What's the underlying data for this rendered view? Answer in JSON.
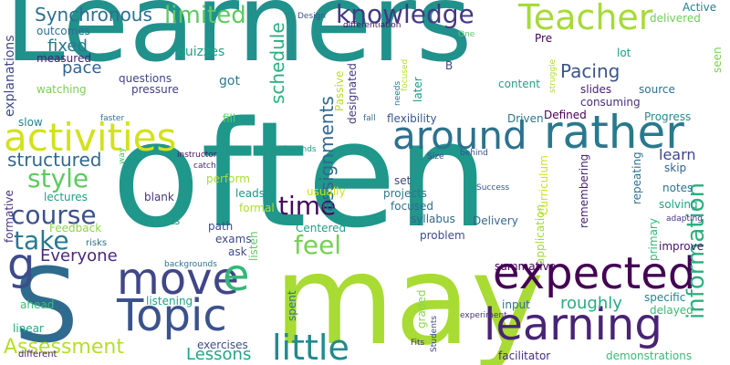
{
  "words": [
    {
      "text": "Learners",
      "color": "#21918c",
      "vertical": false
    },
    {
      "text": "often",
      "color": "#1f978b",
      "vertical": false
    },
    {
      "text": "may",
      "color": "#a8db34",
      "vertical": false
    },
    {
      "text": "S",
      "color": "#2f6b8e",
      "vertical": false
    },
    {
      "text": "Topic",
      "color": "#3b528b",
      "vertical": false
    },
    {
      "text": "learning",
      "color": "#482475",
      "vertical": false
    },
    {
      "text": "expected",
      "color": "#440154",
      "vertical": false
    },
    {
      "text": "move",
      "color": "#404688",
      "vertical": false
    },
    {
      "text": "g",
      "color": "#3e4c8a",
      "vertical": false
    },
    {
      "text": "e",
      "color": "#35b779",
      "vertical": false
    },
    {
      "text": "activities",
      "color": "#d2e21b",
      "vertical": false
    },
    {
      "text": "around",
      "color": "#2c728e",
      "vertical": false
    },
    {
      "text": "rather",
      "color": "#29798e",
      "vertical": false
    },
    {
      "text": "Teacher",
      "color": "#a5db36",
      "vertical": false
    },
    {
      "text": "knowledge",
      "color": "#443983",
      "vertical": false
    },
    {
      "text": "little",
      "color": "#23898e",
      "vertical": false
    },
    {
      "text": "information",
      "color": "#2ab07f",
      "vertical": true
    },
    {
      "text": "course",
      "color": "#3b528b",
      "vertical": false
    },
    {
      "text": "take",
      "color": "#2a788e",
      "vertical": false
    },
    {
      "text": "feel",
      "color": "#75d054",
      "vertical": false
    },
    {
      "text": "time",
      "color": "#46085c",
      "vertical": false
    },
    {
      "text": "style",
      "color": "#5ec962",
      "vertical": false
    },
    {
      "text": "structured",
      "color": "#31688e",
      "vertical": false
    },
    {
      "text": "limited",
      "color": "#5ec962",
      "vertical": false
    },
    {
      "text": "Synchronous",
      "color": "#2d708e",
      "vertical": false
    },
    {
      "text": "Assessment",
      "color": "#b5de2b",
      "vertical": false
    },
    {
      "text": "Everyone",
      "color": "#482878",
      "vertical": false
    },
    {
      "text": "assignments",
      "color": "#31688e",
      "vertical": true
    },
    {
      "text": "schedule",
      "color": "#2ab07f",
      "vertical": true
    },
    {
      "text": "Pacing",
      "color": "#39568c",
      "vertical": false
    },
    {
      "text": "roughly",
      "color": "#26ad81",
      "vertical": false
    },
    {
      "text": "fixed",
      "color": "#2a788e",
      "vertical": false
    },
    {
      "text": "pace",
      "color": "#33638d",
      "vertical": false
    },
    {
      "text": "Lessons",
      "color": "#21a685",
      "vertical": false
    },
    {
      "text": "quizzes",
      "color": "#1f9e89",
      "vertical": false
    },
    {
      "text": "outcomes",
      "color": "#2e6e8e",
      "vertical": false
    },
    {
      "text": "measured",
      "color": "#481f70",
      "vertical": false
    },
    {
      "text": "watching",
      "color": "#7ad151",
      "vertical": false
    },
    {
      "text": "explanations",
      "color": "#3e4989",
      "vertical": true
    },
    {
      "text": "questions",
      "color": "#414487",
      "vertical": false
    },
    {
      "text": "pressure",
      "color": "#433e85",
      "vertical": false
    },
    {
      "text": "got",
      "color": "#287d8e",
      "vertical": false
    },
    {
      "text": "designated",
      "color": "#453781",
      "vertical": true
    },
    {
      "text": "later",
      "color": "#1f9a8a",
      "vertical": true
    },
    {
      "text": "Passive",
      "color": "#b8de29",
      "vertical": true
    },
    {
      "text": "content",
      "color": "#20a386",
      "vertical": false
    },
    {
      "text": "slides",
      "color": "#482173",
      "vertical": false
    },
    {
      "text": "source",
      "color": "#2c728e",
      "vertical": false
    },
    {
      "text": "consuming",
      "color": "#472d7b",
      "vertical": false
    },
    {
      "text": "Pre",
      "color": "#440154",
      "vertical": false
    },
    {
      "text": "lot",
      "color": "#1f9e89",
      "vertical": false
    },
    {
      "text": "B",
      "color": "#404688",
      "vertical": false
    },
    {
      "text": "Active",
      "color": "#26818e",
      "vertical": false
    },
    {
      "text": "delivered",
      "color": "#6ece58",
      "vertical": false
    },
    {
      "text": "seen",
      "color": "#7ad151",
      "vertical": true
    },
    {
      "text": "flexibility",
      "color": "#38588c",
      "vertical": false
    },
    {
      "text": "Driven",
      "color": "#2b758e",
      "vertical": false
    },
    {
      "text": "Defined",
      "color": "#440154",
      "vertical": false
    },
    {
      "text": "Progress",
      "color": "#228c8d",
      "vertical": false
    },
    {
      "text": "learn",
      "color": "#404688",
      "vertical": false
    },
    {
      "text": "skip",
      "color": "#33638d",
      "vertical": false
    },
    {
      "text": "notes",
      "color": "#2c728e",
      "vertical": false
    },
    {
      "text": "solving",
      "color": "#20a486",
      "vertical": false
    },
    {
      "text": "improve",
      "color": "#471365",
      "vertical": false
    },
    {
      "text": "delayed",
      "color": "#3aba76",
      "vertical": false
    },
    {
      "text": "specific",
      "color": "#24868e",
      "vertical": false
    },
    {
      "text": "facilitator",
      "color": "#472c7a",
      "vertical": false
    },
    {
      "text": "demonstrations",
      "color": "#3aba76",
      "vertical": false
    },
    {
      "text": "input",
      "color": "#2c728e",
      "vertical": false
    },
    {
      "text": "summative",
      "color": "#440154",
      "vertical": false
    },
    {
      "text": "application",
      "color": "#9fda3a",
      "vertical": true
    },
    {
      "text": "Curriculum",
      "color": "#cde11d",
      "vertical": true
    },
    {
      "text": "primary",
      "color": "#35b779",
      "vertical": true
    },
    {
      "text": "remembering",
      "color": "#482071",
      "vertical": true
    },
    {
      "text": "repeating",
      "color": "#2d708e",
      "vertical": true
    },
    {
      "text": "Delivery",
      "color": "#31688e",
      "vertical": false
    },
    {
      "text": "syllabus",
      "color": "#2f6c8e",
      "vertical": false
    },
    {
      "text": "problem",
      "color": "#3e4c8a",
      "vertical": false
    },
    {
      "text": "projects",
      "color": "#2a788e",
      "vertical": false
    },
    {
      "text": "focused",
      "color": "#2e6e8e",
      "vertical": false
    },
    {
      "text": "set",
      "color": "#414487",
      "vertical": false
    },
    {
      "text": "graded",
      "color": "#8bd646",
      "vertical": true
    },
    {
      "text": "spent",
      "color": "#2c738e",
      "vertical": true
    },
    {
      "text": "Centered",
      "color": "#1fa088",
      "vertical": false
    },
    {
      "text": "usually",
      "color": "#cde11d",
      "vertical": false
    },
    {
      "text": "formal",
      "color": "#b0dd2f",
      "vertical": false
    },
    {
      "text": "leads",
      "color": "#1f978b",
      "vertical": false
    },
    {
      "text": "perform",
      "color": "#a8db34",
      "vertical": false
    },
    {
      "text": "path",
      "color": "#3e4c8a",
      "vertical": false
    },
    {
      "text": "exams",
      "color": "#3e4989",
      "vertical": false
    },
    {
      "text": "ask",
      "color": "#3e4c8a",
      "vertical": false
    },
    {
      "text": "listen",
      "color": "#5ec962",
      "vertical": true
    },
    {
      "text": "blank",
      "color": "#453581",
      "vertical": false
    },
    {
      "text": "tests",
      "color": "#1fa088",
      "vertical": false
    },
    {
      "text": "lectures",
      "color": "#1fa088",
      "vertical": false
    },
    {
      "text": "formative",
      "color": "#46337f",
      "vertical": true
    },
    {
      "text": "Feedback",
      "color": "#8bd646",
      "vertical": false
    },
    {
      "text": "risks",
      "color": "#2d708e",
      "vertical": false
    },
    {
      "text": "ahead",
      "color": "#3aba76",
      "vertical": false
    },
    {
      "text": "linear",
      "color": "#22a884",
      "vertical": false
    },
    {
      "text": "different",
      "color": "#481b6d",
      "vertical": false
    },
    {
      "text": "listening",
      "color": "#20a386",
      "vertical": false
    },
    {
      "text": "exercises",
      "color": "#3e4c8a",
      "vertical": false
    },
    {
      "text": "backgrounds",
      "color": "#2c728e",
      "vertical": false
    },
    {
      "text": "slow",
      "color": "#26828e",
      "vertical": false
    },
    {
      "text": "faster",
      "color": "#2d708e",
      "vertical": false
    },
    {
      "text": "fill",
      "color": "#5ec962",
      "vertical": false
    },
    {
      "text": "instructor",
      "color": "#481467",
      "vertical": false
    },
    {
      "text": "catch",
      "color": "#482677",
      "vertical": false
    },
    {
      "text": "depends",
      "color": "#1f9a8a",
      "vertical": false
    },
    {
      "text": "behind",
      "color": "#3b528b",
      "vertical": false
    },
    {
      "text": "Size",
      "color": "#3e4989",
      "vertical": false
    },
    {
      "text": "Success",
      "color": "#38588c",
      "vertical": false
    },
    {
      "text": "adapting",
      "color": "#453781",
      "vertical": false
    },
    {
      "text": "experiment",
      "color": "#46327e",
      "vertical": false
    },
    {
      "text": "Fits",
      "color": "#472f7d",
      "vertical": false
    },
    {
      "text": "Students",
      "color": "#3e4989",
      "vertical": true
    },
    {
      "text": "Design",
      "color": "#3b528b",
      "vertical": false
    },
    {
      "text": "differentiation",
      "color": "#471365",
      "vertical": false
    },
    {
      "text": "One",
      "color": "#5ec962",
      "vertical": false
    },
    {
      "text": "struggle",
      "color": "#b0dd2f",
      "vertical": true
    },
    {
      "text": "needs",
      "color": "#2a788e",
      "vertical": true
    },
    {
      "text": "fall",
      "color": "#2f6c8e",
      "vertical": false
    },
    {
      "text": "focused",
      "color": "#b5de2b",
      "vertical": true
    },
    {
      "text": "way",
      "color": "#4ac16d",
      "vertical": true
    }
  ]
}
